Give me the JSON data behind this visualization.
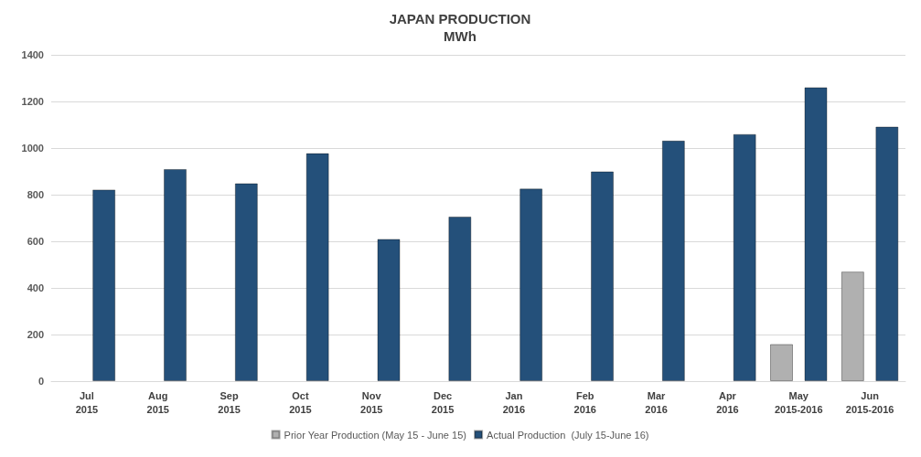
{
  "chart_data": {
    "type": "bar",
    "title": "JAPAN PRODUCTION",
    "subtitle": "MWh",
    "categories": [
      "Jul\n2015",
      "Aug\n2015",
      "Sep\n2015",
      "Oct\n2015",
      "Nov\n2015",
      "Dec\n2015",
      "Jan\n2016",
      "Feb\n2016",
      "Mar\n2016",
      "Apr\n2016",
      "May\n2015-2016",
      "Jun\n2015-2016"
    ],
    "series": [
      {
        "name": "Prior Year Production (May 15 - June 15)",
        "color": "#b0b0b0",
        "values": [
          null,
          null,
          null,
          null,
          null,
          null,
          null,
          null,
          null,
          null,
          159,
          470
        ]
      },
      {
        "name": "Actual Production  (July 15-June 16)",
        "color": "#24507a",
        "values": [
          822,
          910,
          849,
          978,
          610,
          706,
          826,
          900,
          1032,
          1060,
          1261,
          1092
        ]
      }
    ],
    "ylim": [
      0,
      1400
    ],
    "yticks": [
      0,
      200,
      400,
      600,
      800,
      1000,
      1200,
      1400
    ],
    "grid": "y",
    "legend": "bottom"
  }
}
